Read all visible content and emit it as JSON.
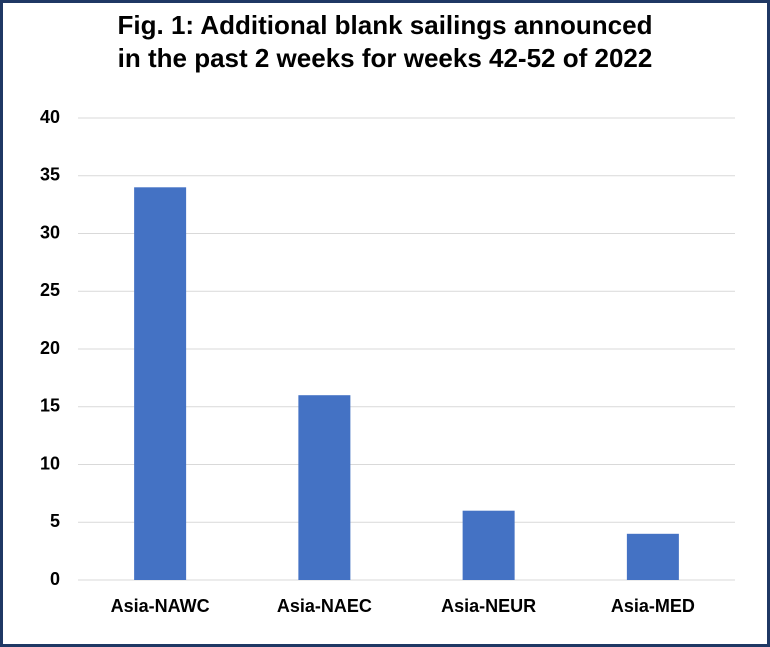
{
  "chart_data": {
    "type": "bar",
    "title": [
      "Fig. 1: Additional blank sailings announced",
      "in the past 2 weeks for weeks 42-52 of 2022"
    ],
    "categories": [
      "Asia-NAWC",
      "Asia-NAEC",
      "Asia-NEUR",
      "Asia-MED"
    ],
    "values": [
      34,
      16,
      6,
      4
    ],
    "color": "#4472c4",
    "ylim": [
      0,
      40
    ],
    "yticks": [
      0,
      5,
      10,
      15,
      20,
      25,
      30,
      35,
      40
    ],
    "grid": true
  }
}
